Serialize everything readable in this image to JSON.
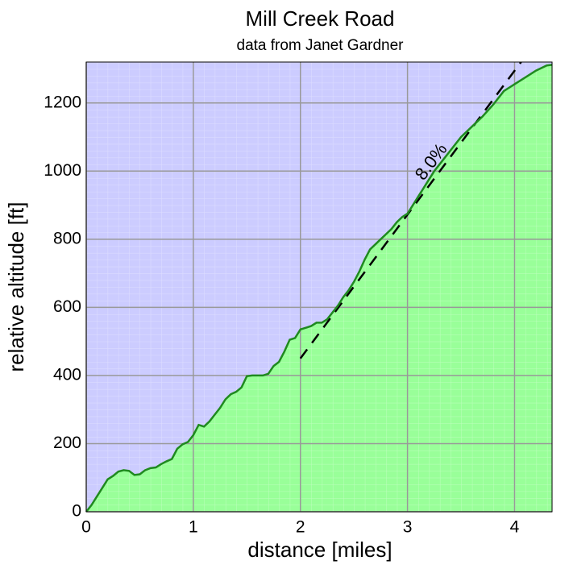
{
  "chart_data": {
    "type": "area",
    "title": "Mill Creek Road",
    "subtitle": "data from Janet Gardner",
    "x_label": "distance [miles]",
    "y_label": "relative altitude [ft]",
    "x": [
      0,
      0.05,
      0.1,
      0.15,
      0.2,
      0.25,
      0.3,
      0.35,
      0.4,
      0.45,
      0.5,
      0.55,
      0.6,
      0.65,
      0.7,
      0.75,
      0.8,
      0.85,
      0.9,
      0.95,
      1.0,
      1.05,
      1.1,
      1.15,
      1.2,
      1.25,
      1.3,
      1.35,
      1.4,
      1.45,
      1.5,
      1.55,
      1.6,
      1.65,
      1.7,
      1.75,
      1.8,
      1.85,
      1.9,
      1.95,
      2.0,
      2.05,
      2.1,
      2.15,
      2.2,
      2.25,
      2.3,
      2.35,
      2.4,
      2.45,
      2.5,
      2.55,
      2.6,
      2.65,
      2.7,
      2.75,
      2.8,
      2.85,
      2.9,
      2.95,
      3.0,
      3.05,
      3.1,
      3.15,
      3.2,
      3.25,
      3.3,
      3.4,
      3.5,
      3.6,
      3.7,
      3.8,
      3.9,
      4.0,
      4.1,
      4.2,
      4.3,
      4.35
    ],
    "series": [
      {
        "name": "altitude",
        "color": "#1f8a1f",
        "fill": "#99ff99",
        "values": [
          0,
          20,
          45,
          70,
          95,
          105,
          118,
          122,
          120,
          108,
          110,
          122,
          128,
          130,
          140,
          148,
          155,
          185,
          198,
          205,
          225,
          255,
          250,
          265,
          285,
          305,
          330,
          345,
          352,
          365,
          398,
          400,
          400,
          400,
          405,
          428,
          440,
          470,
          505,
          510,
          535,
          540,
          545,
          555,
          555,
          565,
          585,
          605,
          630,
          650,
          675,
          705,
          740,
          770,
          785,
          800,
          815,
          830,
          850,
          865,
          875,
          900,
          925,
          950,
          975,
          1000,
          1020,
          1060,
          1100,
          1130,
          1160,
          1195,
          1235,
          1255,
          1275,
          1295,
          1310,
          1312
        ]
      }
    ],
    "reference_line": {
      "x": [
        2,
        4.06
      ],
      "y": [
        450,
        1320
      ],
      "label": "8.0%",
      "color": "#000000"
    },
    "xlim": [
      0,
      4.35
    ],
    "ylim": [
      0,
      1320
    ],
    "xticks": [
      0,
      1,
      2,
      3,
      4
    ],
    "yticks": [
      0,
      200,
      400,
      600,
      800,
      1000,
      1200
    ],
    "grid": true,
    "background": "#ccccff"
  }
}
